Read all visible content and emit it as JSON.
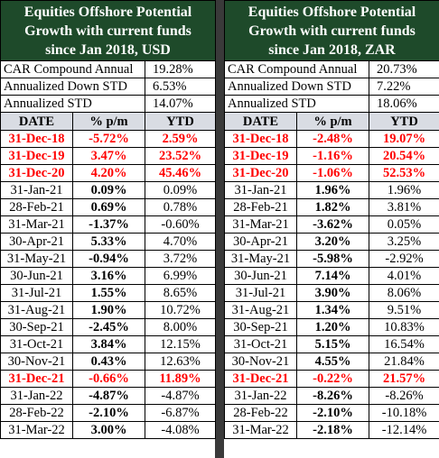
{
  "panels": [
    {
      "title": [
        "Equities Offshore Potential",
        "Growth with current funds",
        "since Jan 2018, USD"
      ],
      "stats": [
        [
          "CAR Compound Annual",
          "19.28%"
        ],
        [
          "Annualized Down STD",
          "6.53%"
        ],
        [
          "Annualized STD",
          "14.07%"
        ]
      ],
      "columns": [
        "DATE",
        "% p/m",
        "YTD"
      ],
      "highlighted_rows": [
        0,
        1,
        2,
        14
      ],
      "rows": [
        [
          "31-Dec-18",
          "-5.72%",
          "2.59%"
        ],
        [
          "31-Dec-19",
          "3.47%",
          "23.52%"
        ],
        [
          "31-Dec-20",
          "4.20%",
          "45.46%"
        ],
        [
          "31-Jan-21",
          "0.09%",
          "0.09%"
        ],
        [
          "28-Feb-21",
          "0.69%",
          "0.78%"
        ],
        [
          "31-Mar-21",
          "-1.37%",
          "-0.60%"
        ],
        [
          "30-Apr-21",
          "5.33%",
          "4.70%"
        ],
        [
          "31-May-21",
          "-0.94%",
          "3.72%"
        ],
        [
          "30-Jun-21",
          "3.16%",
          "6.99%"
        ],
        [
          "31-Jul-21",
          "1.55%",
          "8.65%"
        ],
        [
          "31-Aug-21",
          "1.90%",
          "10.72%"
        ],
        [
          "30-Sep-21",
          "-2.45%",
          "8.00%"
        ],
        [
          "31-Oct-21",
          "3.84%",
          "12.15%"
        ],
        [
          "30-Nov-21",
          "0.43%",
          "12.63%"
        ],
        [
          "31-Dec-21",
          "-0.66%",
          "11.89%"
        ],
        [
          "31-Jan-22",
          "-4.87%",
          "-4.87%"
        ],
        [
          "28-Feb-22",
          "-2.10%",
          "-6.87%"
        ],
        [
          "31-Mar-22",
          "3.00%",
          "-4.08%"
        ]
      ]
    },
    {
      "title": [
        "Equities Offshore Potential",
        "Growth with current funds",
        "since Jan 2018, ZAR"
      ],
      "stats": [
        [
          "CAR Compound Annual",
          "20.73%"
        ],
        [
          "Annualized Down STD",
          "7.22%"
        ],
        [
          "Annualized STD",
          "18.06%"
        ]
      ],
      "columns": [
        "DATE",
        "% p/m",
        "YTD"
      ],
      "highlighted_rows": [
        0,
        1,
        2,
        14
      ],
      "rows": [
        [
          "31-Dec-18",
          "-2.48%",
          "19.07%"
        ],
        [
          "31-Dec-19",
          "-1.16%",
          "20.54%"
        ],
        [
          "31-Dec-20",
          "-1.06%",
          "52.53%"
        ],
        [
          "31-Jan-21",
          "1.96%",
          "1.96%"
        ],
        [
          "28-Feb-21",
          "1.82%",
          "3.81%"
        ],
        [
          "31-Mar-21",
          "-3.62%",
          "0.05%"
        ],
        [
          "30-Apr-21",
          "3.20%",
          "3.25%"
        ],
        [
          "31-May-21",
          "-5.98%",
          "-2.92%"
        ],
        [
          "30-Jun-21",
          "7.14%",
          "4.01%"
        ],
        [
          "31-Jul-21",
          "3.90%",
          "8.06%"
        ],
        [
          "31-Aug-21",
          "1.34%",
          "9.51%"
        ],
        [
          "30-Sep-21",
          "1.20%",
          "10.83%"
        ],
        [
          "31-Oct-21",
          "5.15%",
          "16.54%"
        ],
        [
          "30-Nov-21",
          "4.55%",
          "21.84%"
        ],
        [
          "31-Dec-21",
          "-0.22%",
          "21.57%"
        ],
        [
          "31-Jan-22",
          "-8.26%",
          "-8.26%"
        ],
        [
          "28-Feb-22",
          "-2.10%",
          "-10.18%"
        ],
        [
          "31-Mar-22",
          "-2.18%",
          "-12.14%"
        ]
      ]
    }
  ]
}
